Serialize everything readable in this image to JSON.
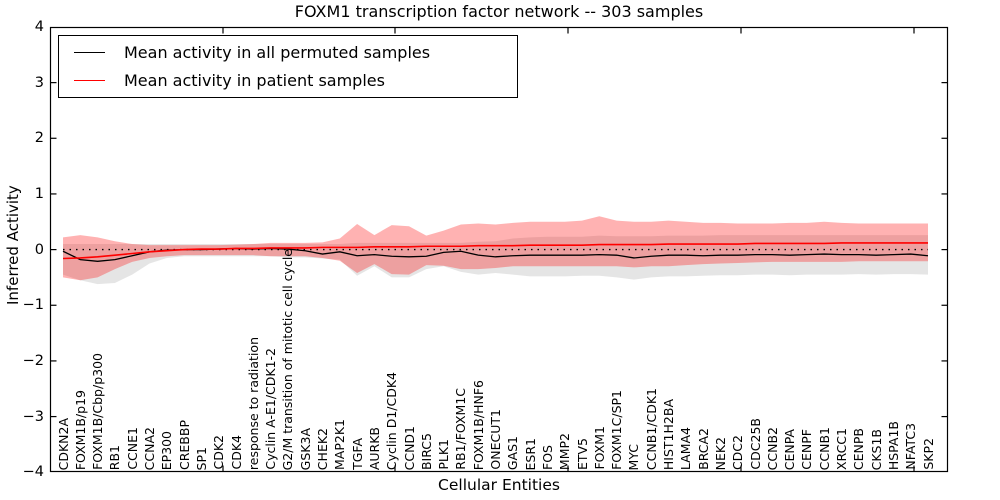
{
  "title": "FOXM1 transcription factor network -- 303 samples",
  "axes": {
    "ylabel": "Inferred Activity",
    "xlabel": "Cellular Entities",
    "ytick_labels": [
      "4",
      "3",
      "2",
      "1",
      "0",
      "−1",
      "−2",
      "−3",
      "−4"
    ]
  },
  "legend": {
    "items": [
      {
        "label": "Mean activity in all permuted samples",
        "color": "#000000"
      },
      {
        "label": "Mean activity in patient samples",
        "color": "#ff0000"
      }
    ]
  },
  "chart_data": {
    "type": "line",
    "title": "FOXM1 transcription factor network -- 303 samples",
    "xlabel": "Cellular Entities",
    "ylabel": "Inferred Activity",
    "ylim": [
      -4,
      4
    ],
    "grid": false,
    "legend_position": "upper left",
    "zero_reference_line": {
      "y": 0,
      "style": "dotted",
      "color": "#000000"
    },
    "categories": [
      "CDKN2A",
      "FOXM1B/p19",
      "FOXM1B/Cbp/p300",
      "RB1",
      "CCNE1",
      "CCNA2",
      "EP300",
      "CREBBP",
      "SP1",
      "CDK2",
      "CDK4",
      "response to radiation",
      "Cyclin A-E1/CDK1-2",
      "G2/M transition of mitotic cell cycle",
      "GSK3A",
      "CHEK2",
      "MAP2K1",
      "TGFA",
      "AURKB",
      "Cyclin D1/CDK4",
      "CCND1",
      "BIRC5",
      "PLK1",
      "RB1/FOXM1C",
      "FOXM1B/HNF6",
      "ONECUT1",
      "GAS1",
      "ESR1",
      "FOS",
      "MMP2",
      "ETV5",
      "FOXM1",
      "FOXM1C/SP1",
      "MYC",
      "CCNB1/CDK1",
      "HIST1H2BA",
      "LAMA4",
      "BRCA2",
      "NEK2",
      "CDC2",
      "CDC25B",
      "CCNB2",
      "CENPA",
      "CENPF",
      "CCNB1",
      "XRCC1",
      "CENPB",
      "CKS1B",
      "HSPA1B",
      "NFATC3",
      "SKP2"
    ],
    "series": [
      {
        "name": "Permuted samples activity range",
        "style": "band",
        "color": "rgba(0,0,0,0.10)",
        "upper": [
          0.1,
          0.1,
          0.1,
          0.1,
          0.1,
          0.1,
          0.1,
          0.1,
          0.1,
          0.1,
          0.1,
          0.1,
          0.1,
          0.1,
          0.1,
          0.1,
          0.1,
          0.12,
          0.12,
          0.12,
          0.12,
          0.12,
          0.12,
          0.12,
          0.14,
          0.15,
          0.2,
          0.22,
          0.23,
          0.23,
          0.23,
          0.25,
          0.24,
          0.24,
          0.24,
          0.25,
          0.25,
          0.25,
          0.26,
          0.26,
          0.26,
          0.26,
          0.26,
          0.26,
          0.26,
          0.26,
          0.26,
          0.26,
          0.26,
          0.26,
          0.26
        ],
        "lower": [
          -0.45,
          -0.55,
          -0.62,
          -0.6,
          -0.45,
          -0.25,
          -0.15,
          -0.12,
          -0.12,
          -0.12,
          -0.12,
          -0.12,
          -0.12,
          -0.14,
          -0.14,
          -0.16,
          -0.18,
          -0.47,
          -0.3,
          -0.5,
          -0.5,
          -0.35,
          -0.3,
          -0.4,
          -0.45,
          -0.42,
          -0.45,
          -0.48,
          -0.48,
          -0.48,
          -0.47,
          -0.47,
          -0.5,
          -0.54,
          -0.5,
          -0.48,
          -0.48,
          -0.47,
          -0.46,
          -0.46,
          -0.45,
          -0.45,
          -0.46,
          -0.45,
          -0.45,
          -0.45,
          -0.44,
          -0.45,
          -0.44,
          -0.44,
          -0.45
        ]
      },
      {
        "name": "Patient samples activity range",
        "style": "band",
        "color": "rgba(255,0,0,0.30)",
        "upper": [
          0.22,
          0.26,
          0.22,
          0.15,
          0.1,
          0.08,
          0.08,
          0.08,
          0.08,
          0.08,
          0.09,
          0.1,
          0.12,
          0.12,
          0.12,
          0.13,
          0.2,
          0.46,
          0.26,
          0.44,
          0.42,
          0.25,
          0.34,
          0.45,
          0.47,
          0.45,
          0.48,
          0.5,
          0.5,
          0.5,
          0.52,
          0.6,
          0.52,
          0.5,
          0.5,
          0.52,
          0.5,
          0.48,
          0.48,
          0.47,
          0.47,
          0.47,
          0.48,
          0.48,
          0.5,
          0.48,
          0.47,
          0.47,
          0.47,
          0.47,
          0.47
        ],
        "lower": [
          -0.5,
          -0.55,
          -0.5,
          -0.35,
          -0.22,
          -0.15,
          -0.12,
          -0.1,
          -0.1,
          -0.1,
          -0.1,
          -0.1,
          -0.12,
          -0.12,
          -0.12,
          -0.15,
          -0.2,
          -0.42,
          -0.26,
          -0.44,
          -0.45,
          -0.28,
          -0.29,
          -0.35,
          -0.35,
          -0.33,
          -0.3,
          -0.3,
          -0.3,
          -0.3,
          -0.3,
          -0.3,
          -0.3,
          -0.32,
          -0.3,
          -0.3,
          -0.28,
          -0.26,
          -0.25,
          -0.24,
          -0.23,
          -0.22,
          -0.22,
          -0.22,
          -0.22,
          -0.22,
          -0.21,
          -0.21,
          -0.21,
          -0.21,
          -0.21
        ]
      },
      {
        "name": "Mean activity in all permuted samples",
        "style": "line",
        "color": "#000000",
        "values": [
          -0.03,
          -0.18,
          -0.21,
          -0.18,
          -0.11,
          -0.04,
          -0.01,
          0.0,
          0.0,
          0.01,
          0.02,
          0.01,
          0.02,
          0.01,
          -0.02,
          -0.08,
          -0.04,
          -0.11,
          -0.09,
          -0.12,
          -0.13,
          -0.12,
          -0.05,
          -0.03,
          -0.1,
          -0.13,
          -0.11,
          -0.1,
          -0.1,
          -0.1,
          -0.1,
          -0.09,
          -0.1,
          -0.15,
          -0.12,
          -0.1,
          -0.1,
          -0.11,
          -0.1,
          -0.1,
          -0.09,
          -0.09,
          -0.1,
          -0.09,
          -0.08,
          -0.09,
          -0.09,
          -0.1,
          -0.09,
          -0.08,
          -0.11
        ]
      },
      {
        "name": "Mean activity in patient samples",
        "style": "line",
        "color": "#ff0000",
        "values": [
          -0.16,
          -0.15,
          -0.13,
          -0.1,
          -0.07,
          -0.04,
          -0.02,
          0.0,
          0.01,
          0.01,
          0.02,
          0.02,
          0.03,
          0.03,
          0.03,
          0.04,
          0.04,
          0.04,
          0.05,
          0.05,
          0.05,
          0.06,
          0.06,
          0.06,
          0.07,
          0.07,
          0.07,
          0.08,
          0.08,
          0.08,
          0.08,
          0.09,
          0.09,
          0.09,
          0.09,
          0.1,
          0.1,
          0.1,
          0.1,
          0.1,
          0.11,
          0.11,
          0.11,
          0.11,
          0.11,
          0.12,
          0.12,
          0.12,
          0.12,
          0.12,
          0.12
        ]
      }
    ]
  }
}
